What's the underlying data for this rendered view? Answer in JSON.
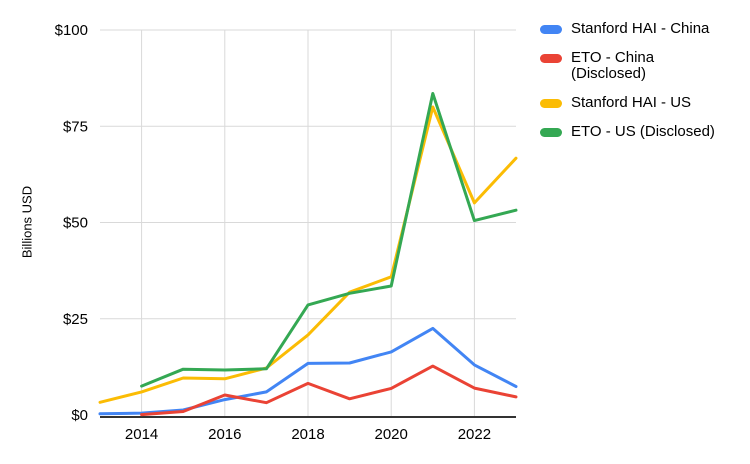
{
  "page": {
    "background": "#ffffff"
  },
  "chart_data": {
    "type": "line",
    "title": "",
    "ylabel": "Billions USD",
    "xlabel": "",
    "xlim": [
      2013,
      2023
    ],
    "ylim": [
      0,
      100
    ],
    "grid": true,
    "legend_position": "right",
    "x_ticks": [
      2014,
      2016,
      2018,
      2020,
      2022
    ],
    "y_ticks": [
      0,
      25,
      50,
      75,
      100
    ],
    "y_tick_labels": [
      "$0",
      "$25",
      "$50",
      "$75",
      "$100"
    ],
    "x": [
      2013,
      2014,
      2015,
      2016,
      2017,
      2018,
      2019,
      2020,
      2021,
      2022,
      2023
    ],
    "series": [
      {
        "name": "Stanford HAI - China",
        "color": "#4285F4",
        "values": [
          0.3,
          0.5,
          1.3,
          4.0,
          6.0,
          13.4,
          13.5,
          16.4,
          22.5,
          13.0,
          7.4
        ]
      },
      {
        "name": "ETO - China (Disclosed)",
        "color": "#EA4335",
        "values": [
          null,
          0.1,
          0.9,
          5.2,
          3.2,
          8.2,
          4.2,
          6.9,
          12.7,
          7.0,
          4.7
        ]
      },
      {
        "name": "Stanford HAI - US",
        "color": "#FBBC04",
        "values": [
          3.3,
          6.0,
          9.6,
          9.4,
          12.2,
          20.8,
          31.9,
          35.9,
          80.0,
          55.1,
          66.7
        ]
      },
      {
        "name": "ETO - US (Disclosed)",
        "color": "#34A853",
        "values": [
          null,
          7.5,
          11.9,
          11.7,
          12.0,
          28.6,
          31.6,
          33.5,
          83.5,
          50.5,
          53.2
        ]
      }
    ],
    "style": {
      "axis_color": "#333333",
      "gridline_color": "#d9d9d9",
      "text_color": "#000000",
      "line_width": 3,
      "tick_font_size": 15
    }
  }
}
